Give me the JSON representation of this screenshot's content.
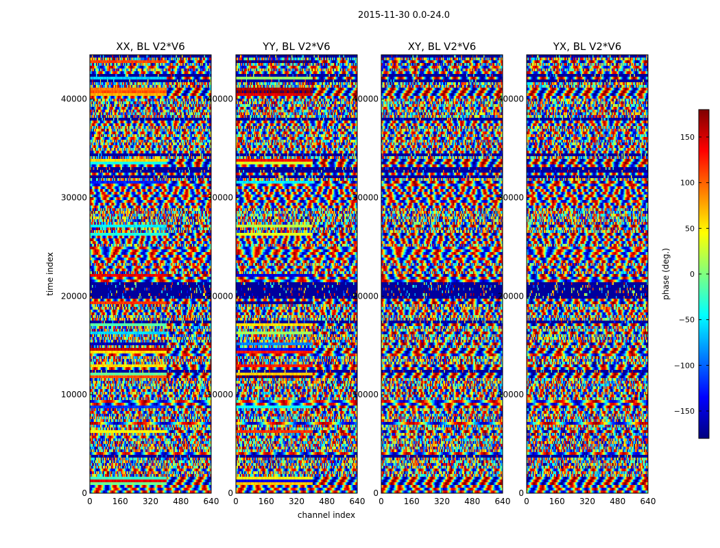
{
  "chart_data": {
    "type": "heatmap",
    "title": "2015-11-30 0.0-24.0",
    "xlabel": "channel index",
    "ylabel": "time index",
    "xlim": [
      0,
      640
    ],
    "ylim": [
      0,
      44500
    ],
    "x_ticks": [
      "0",
      "160",
      "320",
      "480",
      "640"
    ],
    "x_tick_values": [
      0,
      160,
      320,
      480,
      640
    ],
    "y_ticks": [
      "0",
      "10000",
      "20000",
      "30000",
      "40000"
    ],
    "y_tick_values": [
      0,
      10000,
      20000,
      30000,
      40000
    ],
    "panels": [
      {
        "title": "XX, BL V2*V6"
      },
      {
        "title": "YY, BL V2*V6"
      },
      {
        "title": "XY, BL V2*V6"
      },
      {
        "title": "YX, BL V2*V6"
      }
    ],
    "colorbar": {
      "label": "phase (deg.)",
      "range": [
        -180,
        180
      ],
      "ticks": [
        "−150",
        "−100",
        "−50",
        "0",
        "50",
        "100",
        "150"
      ],
      "tick_values": [
        -150,
        -100,
        -50,
        0,
        50,
        100,
        150
      ],
      "colormap": [
        "#00007f",
        "#0000ff",
        "#007fff",
        "#00ffff",
        "#7fff7f",
        "#ffff00",
        "#ff7f00",
        "#ff0000",
        "#7f0000"
      ]
    }
  }
}
